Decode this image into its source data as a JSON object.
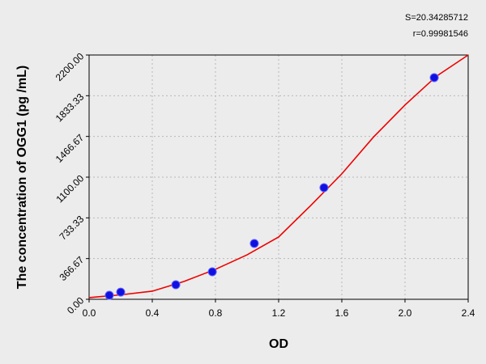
{
  "chart_data": {
    "type": "scatter",
    "x_label": "OD",
    "y_label": "The concentration of OGG1 (pg /mL)",
    "annotations": [
      "S=20.34285712",
      "r=0.99981546"
    ],
    "xlim": [
      0,
      2.4
    ],
    "ylim": [
      0,
      2200
    ],
    "xticks": [
      {
        "value": 0,
        "label": "0.0"
      },
      0.4,
      0.8,
      1.2,
      {
        "value": 1.6,
        "label": "1.6"
      },
      {
        "value": 2,
        "label": "2.0"
      },
      2.4
    ],
    "yticks": [
      {
        "value": 0,
        "label": "0.00"
      },
      {
        "value": 366.67,
        "label": "366.67"
      },
      {
        "value": 733.33,
        "label": "733.33"
      },
      {
        "value": 1100,
        "label": "1100.00"
      },
      {
        "value": 1466.67,
        "label": "1466.67"
      },
      {
        "value": 1833.33,
        "label": "1833.33"
      },
      {
        "value": 2200,
        "label": "2200.00"
      }
    ],
    "grid": true,
    "series": [
      {
        "type": "line",
        "color": "#ee0000",
        "x": [
          0,
          0.2,
          0.4,
          0.6,
          0.8,
          1.0,
          1.2,
          1.4,
          1.6,
          1.8,
          2.0,
          2.2,
          2.4
        ],
        "values": [
          15,
          40,
          73,
          160,
          270,
          400,
          561,
          840,
          1130,
          1460,
          1750,
          2010,
          2200
        ]
      },
      {
        "type": "scatter",
        "color": "#1010e0",
        "x": [
          0.128,
          0.2,
          0.549,
          0.78,
          1.046,
          1.487,
          2.185
        ],
        "values": [
          36,
          65,
          131,
          248,
          503,
          1005,
          1996
        ]
      }
    ]
  }
}
